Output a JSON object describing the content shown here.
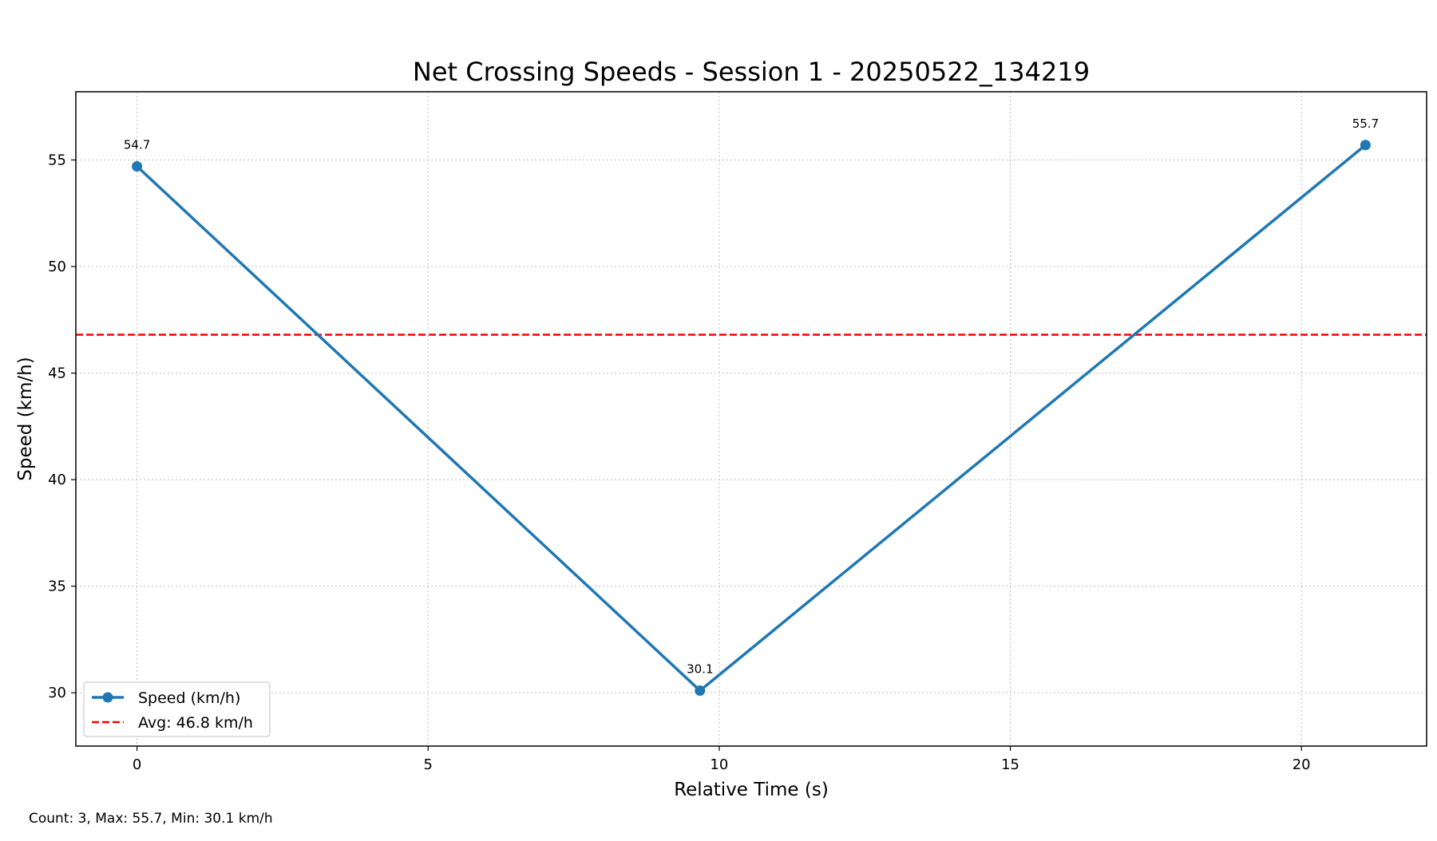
{
  "chart_data": {
    "type": "line",
    "title": "Net Crossing Speeds - Session 1 - 20250522_134219",
    "xlabel": "Relative Time (s)",
    "ylabel": "Speed (km/h)",
    "xlim": [
      -1.05,
      22.15
    ],
    "ylim": [
      27.5,
      58.2
    ],
    "x_ticks": [
      0,
      5,
      10,
      15,
      20
    ],
    "y_ticks": [
      30,
      35,
      40,
      45,
      50,
      55
    ],
    "grid": true,
    "legend_position": "lower-left",
    "series": [
      {
        "name": "Speed (km/h)",
        "color": "#1f77b4",
        "marker": "circle",
        "x": [
          0,
          9.67,
          21.1
        ],
        "y": [
          54.7,
          30.1,
          55.7
        ],
        "labels": [
          "54.7",
          "30.1",
          "55.7"
        ]
      }
    ],
    "reference_lines": [
      {
        "name": "Avg: 46.8 km/h",
        "orientation": "horizontal",
        "value": 46.8,
        "color": "#ff0000",
        "style": "dashed"
      }
    ]
  },
  "footer_note": "Count: 3, Max: 55.7, Min: 30.1 km/h"
}
